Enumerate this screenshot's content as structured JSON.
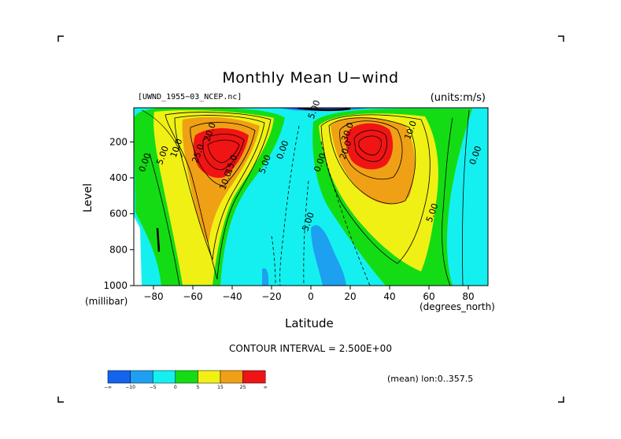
{
  "page": {
    "title": "Monthly Mean U−wind",
    "dataset_label": "[UWND_1955−03_NCEP.nc]",
    "units_label": "(units:m/s)",
    "contour_interval": "CONTOUR INTERVAL = 2.500E+00",
    "mean_note": "(mean) lon:0..357.5"
  },
  "chart_data": {
    "type": "heatmap",
    "title": "Monthly Mean U−wind",
    "xlabel": "Latitude",
    "xlabel_units": "(degrees_north)",
    "ylabel": "Level",
    "ylabel_units": "(millibar)",
    "xlim": [
      -90,
      90
    ],
    "ylim": [
      1000,
      10
    ],
    "x_ticks": [
      -80,
      -60,
      -40,
      -20,
      0,
      20,
      40,
      60,
      80
    ],
    "x_tick_labels": [
      "−80",
      "−60",
      "−40",
      "−20",
      "0",
      "20",
      "40",
      "60",
      "80"
    ],
    "y_ticks": [
      200,
      400,
      600,
      800,
      1000
    ],
    "y_tick_labels": [
      "200",
      "400",
      "600",
      "800",
      "1000"
    ],
    "colorbar": {
      "colors": [
        "#1464f0",
        "#1ea0f0",
        "#14f0f0",
        "#14dc14",
        "#f0f014",
        "#f0a014",
        "#f01414"
      ],
      "tick_labels": [
        "−∞",
        "−10",
        "−5",
        "0",
        "5",
        "15",
        "25",
        "∞"
      ]
    },
    "contour_labels": [
      {
        "text": "20.0",
        "lat": -50,
        "lev": 150
      },
      {
        "text": "10.0",
        "lat": -67,
        "lev": 240
      },
      {
        "text": "5.00",
        "lat": -74,
        "lev": 280
      },
      {
        "text": "0.00",
        "lat": -83,
        "lev": 320
      },
      {
        "text": "25.0",
        "lat": -56,
        "lev": 270
      },
      {
        "text": "15.0",
        "lat": -39,
        "lev": 330
      },
      {
        "text": "10.0",
        "lat": -42,
        "lev": 420
      },
      {
        "text": "5.00",
        "lat": -22,
        "lev": 330
      },
      {
        "text": "0.00",
        "lat": -13,
        "lev": 250
      },
      {
        "text": "5.00",
        "lat": 3,
        "lev": 25
      },
      {
        "text": "0.00",
        "lat": 6,
        "lev": 320
      },
      {
        "text": "5.00",
        "lat": 0,
        "lev": 650
      },
      {
        "text": "30.0",
        "lat": 20,
        "lev": 150
      },
      {
        "text": "20.0",
        "lat": 19,
        "lev": 250
      },
      {
        "text": "10.0",
        "lat": 52,
        "lev": 140
      },
      {
        "text": "5.00",
        "lat": 63,
        "lev": 600
      },
      {
        "text": "0.00",
        "lat": 85,
        "lev": 280
      }
    ]
  }
}
